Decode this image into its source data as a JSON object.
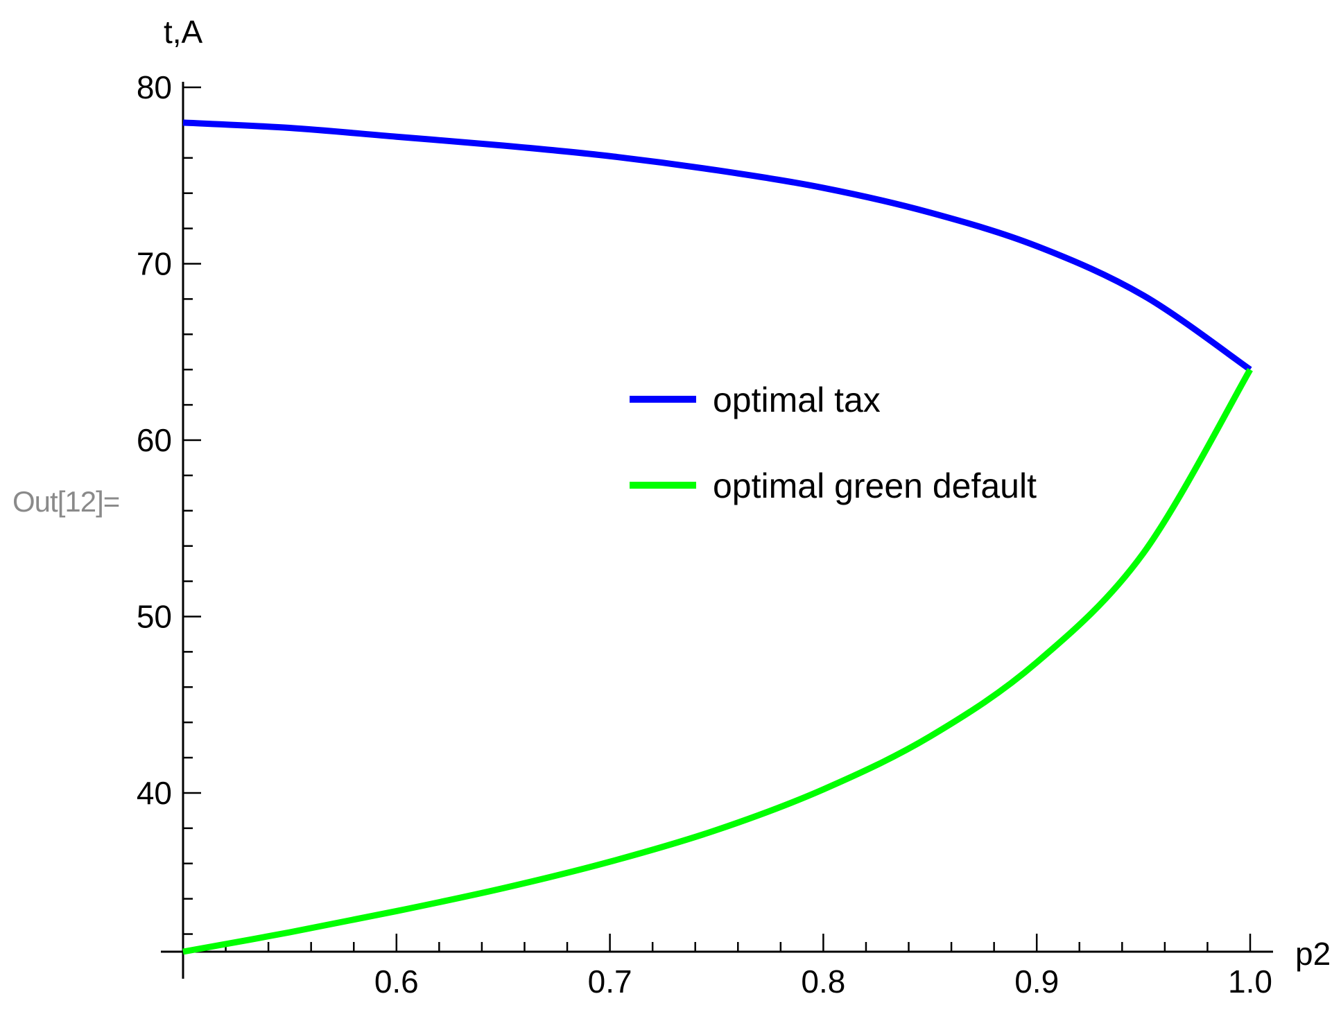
{
  "cell_label": "Out[12]=",
  "chart_data": {
    "type": "line",
    "xlabel": "p2",
    "ylabel": "t,A",
    "xlim": [
      0.5,
      1.0
    ],
    "ylim": [
      31,
      80
    ],
    "x_ticks": [
      0.6,
      0.7,
      0.8,
      0.9,
      1.0
    ],
    "x_tick_labels": [
      "0.6",
      "0.7",
      "0.8",
      "0.9",
      "1.0"
    ],
    "y_ticks": [
      40,
      50,
      60,
      70,
      80
    ],
    "y_tick_labels": [
      "40",
      "50",
      "60",
      "70",
      "80"
    ],
    "legend_position": "center",
    "x": [
      0.5,
      0.55,
      0.6,
      0.65,
      0.7,
      0.75,
      0.8,
      0.85,
      0.9,
      0.95,
      1.0
    ],
    "series": [
      {
        "name": "optimal tax",
        "color": "#0000ff",
        "values": [
          78.0,
          77.7,
          77.2,
          76.7,
          76.1,
          75.3,
          74.3,
          72.9,
          71.0,
          68.2,
          64.0
        ]
      },
      {
        "name": "optimal green default",
        "color": "#00ff00",
        "values": [
          31.0,
          32.1,
          33.3,
          34.6,
          36.1,
          37.9,
          40.2,
          43.2,
          47.4,
          53.6,
          64.0
        ]
      }
    ]
  }
}
